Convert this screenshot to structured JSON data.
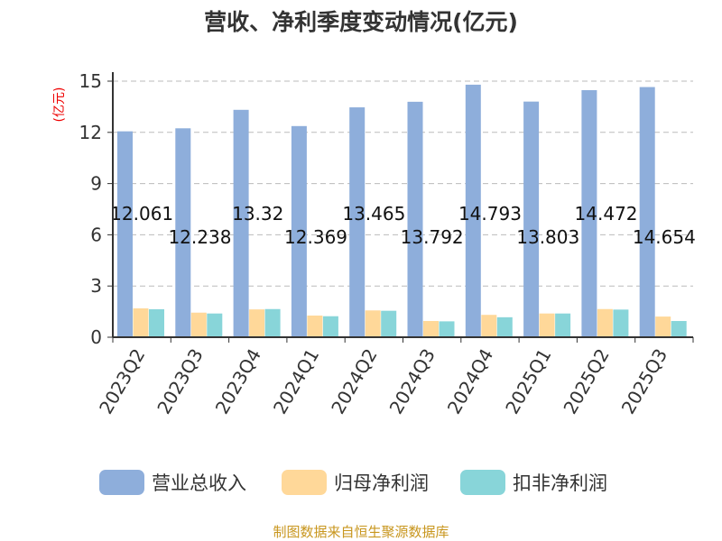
{
  "chart_data": {
    "type": "bar",
    "title": "营收、净利季度变动情况(亿元)",
    "ylabel": "(亿元)",
    "ylim": [
      0,
      15
    ],
    "yticks": [
      0,
      3,
      6,
      9,
      12,
      15
    ],
    "grid": true,
    "legend_position": "bottom",
    "categories": [
      "2023Q2",
      "2023Q3",
      "2023Q4",
      "2024Q1",
      "2024Q2",
      "2024Q3",
      "2024Q4",
      "2025Q1",
      "2025Q2",
      "2025Q3"
    ],
    "series": [
      {
        "name": "营业总收入",
        "color": "#8eaedb",
        "values": [
          12.061,
          12.238,
          13.32,
          12.369,
          13.465,
          13.792,
          14.793,
          13.803,
          14.472,
          14.654
        ],
        "labels": [
          "12.061",
          "12.238",
          "13.32",
          "12.369",
          "13.465",
          "13.792",
          "14.793",
          "13.803",
          "14.472",
          "14.654"
        ]
      },
      {
        "name": "归母净利润",
        "color": "#ffd899",
        "values": [
          1.69,
          1.44,
          1.63,
          1.27,
          1.57,
          0.95,
          1.31,
          1.39,
          1.65,
          1.21
        ]
      },
      {
        "name": "扣非净利润",
        "color": "#88d5d9",
        "values": [
          1.64,
          1.39,
          1.65,
          1.23,
          1.55,
          0.93,
          1.17,
          1.39,
          1.62,
          0.95
        ]
      }
    ],
    "source": "制图数据来自恒生聚源数据库"
  }
}
